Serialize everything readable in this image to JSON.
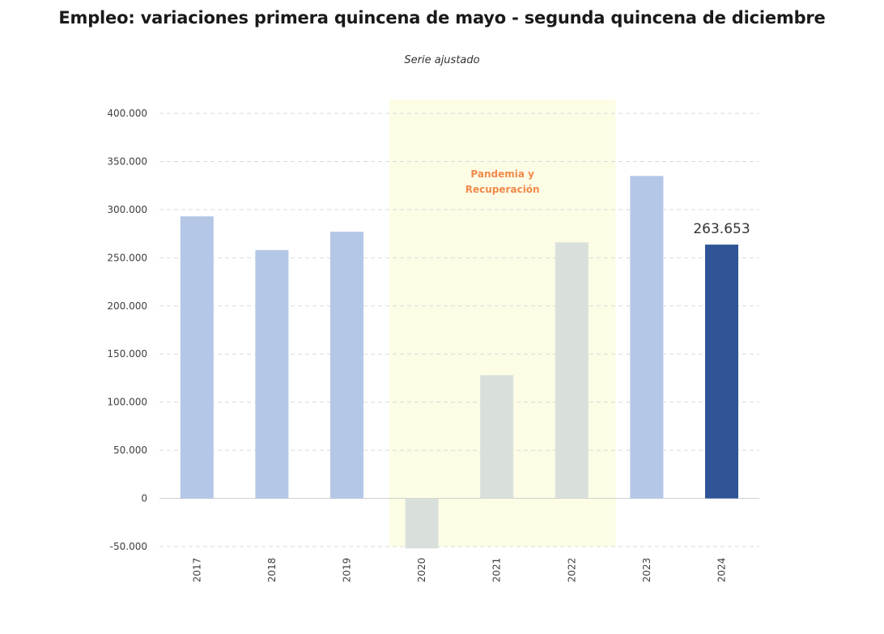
{
  "chart_data": {
    "type": "bar",
    "title": "Empleo: variaciones primera quincena de mayo - segunda quincena de diciembre",
    "subtitle": "Serie ajustado",
    "categories": [
      "2017",
      "2018",
      "2019",
      "2020",
      "2021",
      "2022",
      "2023",
      "2024"
    ],
    "values": [
      293000,
      258000,
      277000,
      -52000,
      128000,
      266000,
      335000,
      263653
    ],
    "bar_colors": [
      "#b4c7e7",
      "#b4c7e7",
      "#b4c7e7",
      "#d9e0dc",
      "#d9e0dc",
      "#d9e0dc",
      "#b4c7e7",
      "#2f5597"
    ],
    "ylim": [
      -50000,
      400000
    ],
    "y_ticks": [
      {
        "value": -50000,
        "label": "-50.000"
      },
      {
        "value": 0,
        "label": "0"
      },
      {
        "value": 50000,
        "label": "50.000"
      },
      {
        "value": 100000,
        "label": "100.000"
      },
      {
        "value": 150000,
        "label": "150.000"
      },
      {
        "value": 200000,
        "label": "200.000"
      },
      {
        "value": 250000,
        "label": "250.000"
      },
      {
        "value": 300000,
        "label": "300.000"
      },
      {
        "value": 350000,
        "label": "350.000"
      },
      {
        "value": 400000,
        "label": "400.000"
      }
    ],
    "grid": true,
    "highlight": {
      "from": "2020",
      "to": "2022",
      "color": "#fdfde6",
      "label_lines": [
        "Pandemia y",
        "Recuperación"
      ],
      "label_color": "#f08a4b"
    },
    "data_label": {
      "category": "2024",
      "text": "263.653"
    }
  }
}
